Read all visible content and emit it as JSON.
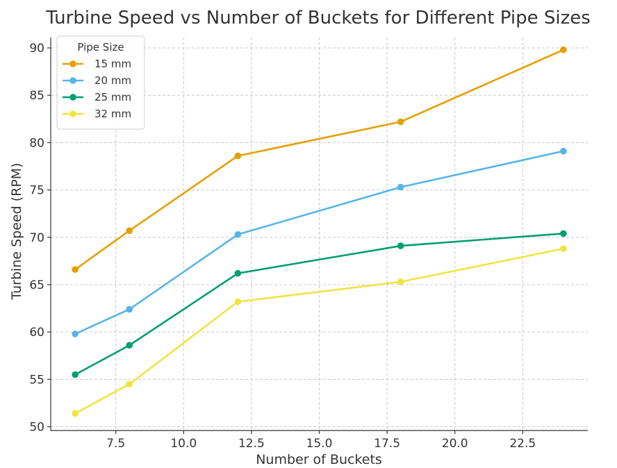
{
  "chart_data": {
    "type": "line",
    "title": "Turbine Speed vs Number of Buckets for Different Pipe Sizes",
    "xlabel": "Number of Buckets",
    "ylabel": "Turbine Speed (RPM)",
    "x": [
      6,
      8,
      12,
      18,
      24
    ],
    "xlim": [
      5.1,
      24.9
    ],
    "ylim": [
      49.6,
      91.1
    ],
    "xticks": [
      7.5,
      10.0,
      12.5,
      15.0,
      17.5,
      20.0,
      22.5
    ],
    "xtick_labels": [
      "7.5",
      "10.0",
      "12.5",
      "15.0",
      "17.5",
      "20.0",
      "22.5"
    ],
    "yticks": [
      50,
      55,
      60,
      65,
      70,
      75,
      80,
      85,
      90
    ],
    "ytick_labels": [
      "50",
      "55",
      "60",
      "65",
      "70",
      "75",
      "80",
      "85",
      "90"
    ],
    "grid": true,
    "legend": {
      "title": "Pipe Size",
      "position": "top-left"
    },
    "series": [
      {
        "name": "15 mm",
        "color": "#E69F00",
        "values": [
          66.6,
          70.7,
          78.6,
          82.2,
          89.8
        ]
      },
      {
        "name": "20 mm",
        "color": "#56B4E9",
        "values": [
          59.8,
          62.4,
          70.3,
          75.3,
          79.1
        ]
      },
      {
        "name": "25 mm",
        "color": "#009E73",
        "values": [
          55.5,
          58.6,
          66.2,
          69.1,
          70.4
        ]
      },
      {
        "name": "32 mm",
        "color": "#F0E442",
        "values": [
          51.4,
          54.5,
          63.2,
          65.3,
          68.8
        ]
      }
    ]
  }
}
